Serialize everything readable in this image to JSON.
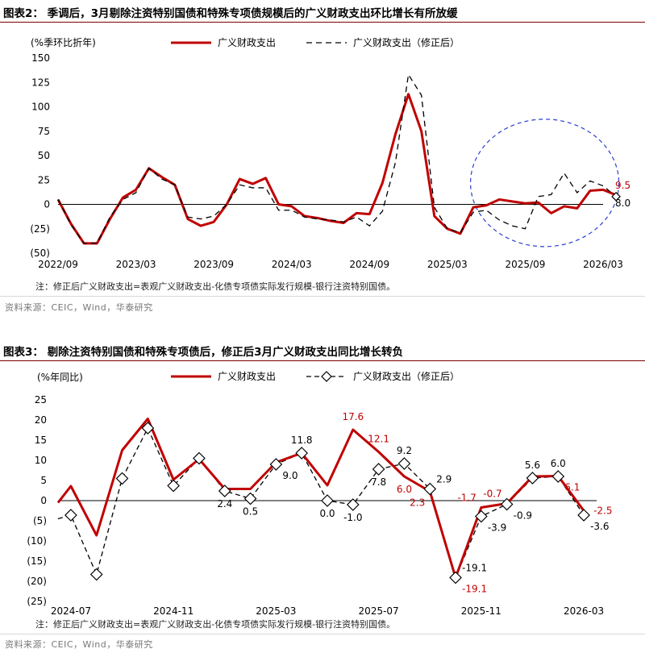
{
  "figure1": {
    "title": "图表2： 季调后，3月剔除注资特别国债和特殊专项债规模后的广义财政支出环比增长有所放缓",
    "note": "注：修正后广义财政支出=表观广义财政支出-化债专项债实际发行规模-银行注资特别国债。",
    "source": "资料来源：CEIC，Wind，华泰研究"
  },
  "figure2": {
    "title": "图表3： 剔除注资特别国债和特殊专项债后，修正后3月广义财政支出同比增长转负",
    "note": "注：修正后广义财政支出=表观广义财政支出-化债专项债实际发行规模-银行注资特别国债。",
    "source": "资料来源：CEIC，Wind，华泰研究"
  },
  "colors": {
    "red": "#c00000",
    "black": "#000000",
    "ellipse": "#2a3fd0"
  },
  "chart_data": [
    {
      "type": "line",
      "ylabel": "(%季环比折年)",
      "ylim": [
        -50,
        150
      ],
      "yticks": [
        150,
        125,
        100,
        75,
        50,
        25,
        0,
        -25,
        -50
      ],
      "ytick_labels": [
        "150",
        "125",
        "100",
        "75",
        "50",
        "25",
        "0",
        "(25)",
        "(50)"
      ],
      "xticks": [
        {
          "label": "2022/09",
          "x": 0
        },
        {
          "label": "2023/03",
          "x": 6
        },
        {
          "label": "2023/09",
          "x": 12
        },
        {
          "label": "2024/03",
          "x": 18
        },
        {
          "label": "2024/09",
          "x": 24
        },
        {
          "label": "2025/03",
          "x": 30
        },
        {
          "label": "2025/09",
          "x": 36
        },
        {
          "label": "2026/03",
          "x": 42
        }
      ],
      "xlim": [
        0,
        42
      ],
      "series": [
        {
          "name": "广义财政支出",
          "style": "solid",
          "values": [
            5,
            -20,
            -40,
            -40,
            -15,
            7,
            15,
            37,
            28,
            20,
            -15,
            -22,
            -18,
            0,
            26,
            21,
            27,
            0,
            -2,
            -12,
            -14,
            -17,
            -19,
            -9,
            -10,
            22,
            72,
            113,
            75,
            -12,
            -25,
            -30,
            -3,
            -1,
            5,
            3,
            1,
            2,
            -9,
            -2,
            -4,
            14,
            15,
            9.5
          ]
        },
        {
          "name": "广义财政支出（修正后）",
          "style": "dashed",
          "values": [
            5,
            -21,
            -40,
            -40,
            -13,
            5,
            12,
            37,
            26,
            20,
            -13,
            -15,
            -12,
            0,
            20,
            17,
            17,
            -6,
            -6,
            -13,
            -15,
            -16,
            -18,
            -13,
            -22,
            -7,
            43,
            133,
            112,
            -3,
            -25,
            -29,
            -8,
            -6,
            -16,
            -22,
            -25,
            8,
            10,
            32,
            12,
            24,
            19,
            8.0
          ]
        }
      ],
      "annotations": [
        {
          "text": "9.5",
          "x": 43,
          "y": 9.5,
          "color": "red"
        },
        {
          "text": "8.0",
          "x": 43,
          "y": 8.0,
          "color": "black"
        }
      ]
    },
    {
      "type": "line",
      "ylabel": "(%年同比)",
      "ylim": [
        -25,
        25
      ],
      "yticks": [
        25,
        20,
        15,
        10,
        5,
        0,
        -5,
        -10,
        -15,
        -20,
        -25
      ],
      "ytick_labels": [
        "25",
        "20",
        "15",
        "10",
        "5",
        "0",
        "(5)",
        "(10)",
        "(15)",
        "(20)",
        "(25)"
      ],
      "xticks": [
        {
          "label": "2024-07",
          "x": 0
        },
        {
          "label": "2024-11",
          "x": 4
        },
        {
          "label": "2025-03",
          "x": 8
        },
        {
          "label": "2025-07",
          "x": 12
        },
        {
          "label": "2025-11",
          "x": 16
        },
        {
          "label": "2026-03",
          "x": 20
        }
      ],
      "xlim": [
        -0.5,
        20.5
      ],
      "series": [
        {
          "name": "广义财政支出",
          "style": "solid",
          "x": [
            -0.5,
            0,
            1,
            2,
            3,
            4,
            5,
            6,
            7,
            8,
            9,
            10,
            11,
            12,
            13,
            14,
            15,
            16,
            17,
            18,
            19,
            20
          ],
          "values": [
            -0.5,
            3.6,
            -8.6,
            12.5,
            20.3,
            5.2,
            10.3,
            2.9,
            2.9,
            9.5,
            11.8,
            3.8,
            17.6,
            12.1,
            6.0,
            2.3,
            -19.1,
            -1.7,
            -0.7,
            6.0,
            6.1,
            -2.5
          ]
        },
        {
          "name": "广义财政支出（修正后）",
          "style": "dashed-diamond",
          "x": [
            -0.5,
            0,
            1,
            2,
            3,
            4,
            5,
            6,
            7,
            8,
            9,
            10,
            11,
            12,
            13,
            14,
            15,
            16,
            17,
            18,
            19,
            20
          ],
          "values": [
            -4.5,
            -3.6,
            -18.3,
            5.5,
            18.0,
            3.7,
            10.5,
            2.4,
            0.5,
            9.0,
            11.8,
            0.0,
            -1.0,
            7.8,
            9.2,
            2.9,
            -19.1,
            -3.9,
            -0.9,
            5.6,
            6.0,
            -3.6
          ]
        }
      ],
      "labels": [
        {
          "text": "17.6",
          "x": 11,
          "y": 17.6,
          "color": "red",
          "pos": "above"
        },
        {
          "text": "12.1",
          "x": 12,
          "y": 12.1,
          "color": "red",
          "pos": "above"
        },
        {
          "text": "6.0",
          "x": 13,
          "y": 6.0,
          "color": "red",
          "pos": "below"
        },
        {
          "text": "2.3",
          "x": 14,
          "y": 2.3,
          "color": "red",
          "pos": "belowleft"
        },
        {
          "text": "-19.1",
          "x": 15,
          "y": -19.1,
          "color": "red",
          "pos": "belowright"
        },
        {
          "text": "-1.7",
          "x": 16,
          "y": -1.7,
          "color": "red",
          "pos": "aboveleft"
        },
        {
          "text": "-0.7",
          "x": 17,
          "y": -0.7,
          "color": "red",
          "pos": "aboveleft"
        },
        {
          "text": "6.1",
          "x": 19,
          "y": 6.1,
          "color": "red",
          "pos": "belowright"
        },
        {
          "text": "-2.5",
          "x": 20,
          "y": -2.5,
          "color": "red",
          "pos": "right"
        },
        {
          "text": "2.4",
          "x": 6,
          "y": 2.4,
          "color": "black",
          "pos": "below"
        },
        {
          "text": "0.5",
          "x": 7,
          "y": 0.5,
          "color": "black",
          "pos": "below"
        },
        {
          "text": "9.0",
          "x": 8,
          "y": 9.0,
          "color": "black",
          "pos": "belowright"
        },
        {
          "text": "11.8",
          "x": 9,
          "y": 11.8,
          "color": "black",
          "pos": "above"
        },
        {
          "text": "0.0",
          "x": 10,
          "y": 0.0,
          "color": "black",
          "pos": "below"
        },
        {
          "text": "-1.0",
          "x": 11,
          "y": -1.0,
          "color": "black",
          "pos": "below"
        },
        {
          "text": "7.8",
          "x": 12,
          "y": 7.8,
          "color": "black",
          "pos": "below"
        },
        {
          "text": "9.2",
          "x": 13,
          "y": 9.2,
          "color": "black",
          "pos": "above"
        },
        {
          "text": "2.9",
          "x": 14,
          "y": 2.9,
          "color": "black",
          "pos": "aboveright"
        },
        {
          "text": "-19.1",
          "x": 15,
          "y": -19.1,
          "color": "black",
          "pos": "aboveright"
        },
        {
          "text": "-3.9",
          "x": 16,
          "y": -3.9,
          "color": "black",
          "pos": "belowright"
        },
        {
          "text": "-0.9",
          "x": 17,
          "y": -0.9,
          "color": "black",
          "pos": "belowright"
        },
        {
          "text": "5.6",
          "x": 18,
          "y": 5.6,
          "color": "black",
          "pos": "above"
        },
        {
          "text": "6.0",
          "x": 19,
          "y": 6.0,
          "color": "black",
          "pos": "above"
        },
        {
          "text": "-3.6",
          "x": 20,
          "y": -3.6,
          "color": "black",
          "pos": "belowright"
        }
      ]
    }
  ]
}
